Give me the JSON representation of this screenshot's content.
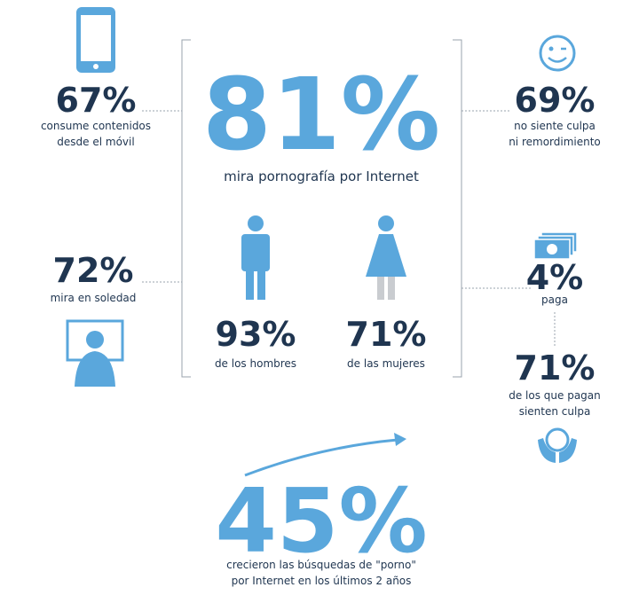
{
  "headline": {
    "value": "81%",
    "label": "mira pornografía por Internet"
  },
  "gender": [
    {
      "value": "93%",
      "label": "de los hombres"
    },
    {
      "value": "71%",
      "label": "de las mujeres"
    }
  ],
  "left": [
    {
      "value": "67%",
      "lines": [
        "consume contenidos",
        "desde el móvil"
      ]
    },
    {
      "value": "72%",
      "lines": [
        "mira en soledad"
      ]
    }
  ],
  "right": [
    {
      "value": "69%",
      "lines": [
        "no siente culpa",
        "ni remordimiento"
      ]
    },
    {
      "value": "4%",
      "lines": [
        "paga"
      ]
    },
    {
      "value": "71%",
      "lines": [
        "de los que pagan",
        "sienten culpa"
      ]
    }
  ],
  "footer": {
    "value": "45%",
    "lines": [
      "crecieron las búsquedas de \"porno\"",
      "por Internet en los últimos 2 años"
    ]
  }
}
